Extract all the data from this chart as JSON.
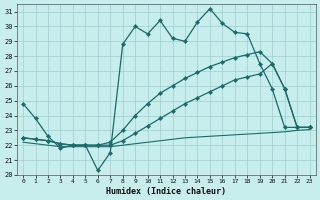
{
  "xlabel": "Humidex (Indice chaleur)",
  "background_color": "#c8eded",
  "grid_color": "#9ecece",
  "line_color": "#1a6b6b",
  "xlim": [
    -0.5,
    23.5
  ],
  "ylim": [
    20,
    31.5
  ],
  "yticks": [
    20,
    21,
    22,
    23,
    24,
    25,
    26,
    27,
    28,
    29,
    30,
    31
  ],
  "xticks": [
    0,
    1,
    2,
    3,
    4,
    5,
    6,
    7,
    8,
    9,
    10,
    11,
    12,
    13,
    14,
    15,
    16,
    17,
    18,
    19,
    20,
    21,
    22,
    23
  ],
  "line1_x": [
    0,
    1,
    2,
    3,
    4,
    5,
    6,
    7,
    8,
    9,
    10,
    11,
    12,
    13,
    14,
    15,
    16,
    17,
    18,
    19,
    20,
    21,
    22,
    23
  ],
  "line1_y": [
    24.8,
    23.8,
    22.6,
    21.8,
    22.0,
    22.0,
    20.3,
    21.5,
    28.8,
    30.0,
    29.5,
    30.4,
    29.2,
    29.0,
    30.3,
    31.2,
    30.2,
    29.6,
    29.5,
    27.5,
    25.8,
    23.2,
    23.2,
    23.2
  ],
  "line2_x": [
    0,
    1,
    2,
    3,
    4,
    5,
    6,
    7,
    8,
    9,
    10,
    11,
    12,
    13,
    14,
    15,
    16,
    17,
    18,
    19,
    20,
    21,
    22,
    23
  ],
  "line2_y": [
    22.2,
    22.1,
    22.0,
    21.9,
    21.9,
    21.9,
    21.9,
    21.9,
    22.0,
    22.1,
    22.2,
    22.3,
    22.4,
    22.5,
    22.55,
    22.6,
    22.65,
    22.7,
    22.75,
    22.8,
    22.85,
    22.9,
    23.0,
    23.05
  ],
  "line3_x": [
    0,
    1,
    2,
    3,
    4,
    5,
    6,
    7,
    8,
    9,
    10,
    11,
    12,
    13,
    14,
    15,
    16,
    17,
    18,
    19,
    20,
    21,
    22,
    23
  ],
  "line3_y": [
    22.5,
    22.4,
    22.3,
    22.1,
    22.0,
    22.0,
    22.0,
    22.0,
    22.3,
    22.8,
    23.3,
    23.8,
    24.3,
    24.8,
    25.2,
    25.6,
    26.0,
    26.4,
    26.6,
    26.8,
    27.5,
    25.8,
    23.2,
    23.2
  ],
  "line4_x": [
    0,
    1,
    2,
    3,
    4,
    5,
    6,
    7,
    8,
    9,
    10,
    11,
    12,
    13,
    14,
    15,
    16,
    17,
    18,
    19,
    20,
    21,
    22,
    23
  ],
  "line4_y": [
    22.5,
    22.4,
    22.3,
    22.1,
    22.0,
    22.0,
    22.0,
    22.2,
    23.0,
    24.0,
    24.8,
    25.5,
    26.0,
    26.5,
    26.9,
    27.3,
    27.6,
    27.9,
    28.1,
    28.3,
    27.5,
    25.8,
    23.2,
    23.2
  ],
  "markers1": [
    0,
    1,
    2,
    3,
    4,
    5,
    6,
    7,
    8,
    9,
    10,
    11,
    12,
    13,
    14,
    15,
    16,
    17,
    18,
    19,
    20,
    21,
    22,
    23
  ],
  "markers3": [
    0,
    7,
    9,
    10,
    20,
    21,
    22
  ],
  "markers4": [
    0,
    9,
    10,
    19,
    20,
    21,
    22
  ]
}
